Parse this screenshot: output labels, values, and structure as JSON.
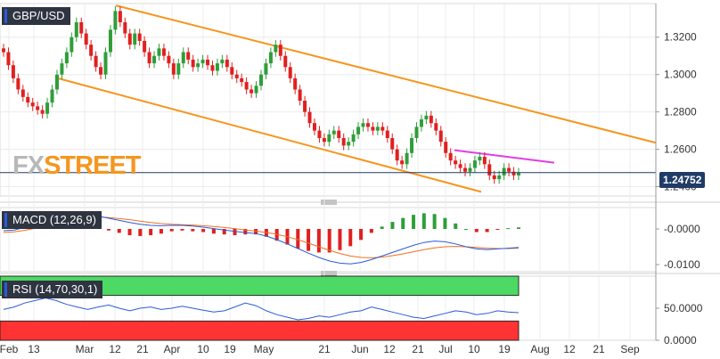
{
  "colors": {
    "up": "#2f9e3a",
    "down": "#e02020",
    "channel": "#f5961e",
    "resistance": "#e040e0",
    "last_price_line": "#1f3b66",
    "macd_line": "#2a5bd7",
    "signal_line": "#f07020",
    "rsi_line": "#2a5bd7",
    "overbought_fill": "#4cd964",
    "oversold_fill": "#ff3333",
    "logo_fx": "#b8b8b8",
    "logo_street": "#f5961e"
  },
  "logo": {
    "fx": "FX",
    "street": "STREET",
    "icon": "fxstreet-logo"
  },
  "price_panel": {
    "label": "GBP/USD",
    "last_price": "1.24752",
    "yticks": [
      "1.3200",
      "1.3000",
      "1.2800",
      "1.2600",
      "1.2400"
    ]
  },
  "macd_panel": {
    "label": "MACD (12,26,9)",
    "yticks": [
      "-0.0000",
      "-0.0100"
    ]
  },
  "rsi_panel": {
    "label": "RSI (14,70,30,1)",
    "yticks": [
      "50.0000",
      "0.0000"
    ]
  },
  "x_labels": [
    "Feb",
    "13",
    "Mar",
    "12",
    "21",
    "Apr",
    "10",
    "19",
    "May",
    "21",
    "Jun",
    "12",
    "21",
    "Jul",
    "10",
    "19",
    "Aug",
    "12",
    "21",
    "Sep"
  ],
  "chart_data": [
    {
      "type": "candlestick",
      "title": "GBP/USD",
      "ylim": [
        1.235,
        1.338
      ],
      "ohlc_approx_close": [
        1.312,
        1.305,
        1.298,
        1.292,
        1.288,
        1.285,
        1.283,
        1.281,
        1.279,
        1.285,
        1.292,
        1.3,
        1.306,
        1.312,
        1.32,
        1.328,
        1.322,
        1.316,
        1.31,
        1.304,
        1.3,
        1.312,
        1.324,
        1.334,
        1.328,
        1.322,
        1.316,
        1.322,
        1.318,
        1.312,
        1.306,
        1.31,
        1.314,
        1.31,
        1.306,
        1.3,
        1.306,
        1.312,
        1.308,
        1.304,
        1.306,
        1.308,
        1.305,
        1.302,
        1.306,
        1.308,
        1.304,
        1.3,
        1.298,
        1.296,
        1.292,
        1.29,
        1.294,
        1.3,
        1.306,
        1.312,
        1.316,
        1.31,
        1.304,
        1.298,
        1.292,
        1.286,
        1.28,
        1.274,
        1.27,
        1.266,
        1.264,
        1.268,
        1.27,
        1.266,
        1.262,
        1.264,
        1.268,
        1.272,
        1.274,
        1.272,
        1.27,
        1.272,
        1.27,
        1.266,
        1.26,
        1.254,
        1.252,
        1.258,
        1.266,
        1.272,
        1.276,
        1.278,
        1.274,
        1.27,
        1.264,
        1.258,
        1.254,
        1.252,
        1.25,
        1.248,
        1.25,
        1.254,
        1.256,
        1.252,
        1.246,
        1.244,
        1.246,
        1.25,
        1.248,
        1.246,
        1.2475
      ]
    },
    {
      "type": "line",
      "title": "MACD (12,26,9)",
      "ylim": [
        -0.012,
        0.006
      ],
      "series": [
        {
          "name": "MACD",
          "values": [
            -0.0005,
            -0.0003,
            0.0004,
            0.0012,
            0.0022,
            0.0032,
            0.004,
            0.0042,
            0.004,
            0.0036,
            0.003,
            0.0024,
            0.0018,
            0.0013,
            0.001,
            0.0009,
            0.001,
            0.001,
            0.0008,
            0.0005,
            0.0001,
            -0.0003,
            -0.0007,
            -0.001,
            -0.0013,
            -0.002,
            -0.003,
            -0.0042,
            -0.0055,
            -0.0068,
            -0.008,
            -0.009,
            -0.0096,
            -0.0098,
            -0.0094,
            -0.0086,
            -0.0076,
            -0.0066,
            -0.0056,
            -0.0046,
            -0.0038,
            -0.0034,
            -0.0036,
            -0.0042,
            -0.005,
            -0.0056,
            -0.0058,
            -0.0056,
            -0.0054,
            -0.0052
          ]
        },
        {
          "name": "Signal",
          "values": [
            -0.001,
            -0.0008,
            -0.0004,
            0.0002,
            0.0009,
            0.0017,
            0.0025,
            0.0031,
            0.0034,
            0.0034,
            0.0032,
            0.0029,
            0.0026,
            0.0022,
            0.0018,
            0.0015,
            0.0013,
            0.0012,
            0.0011,
            0.0009,
            0.0007,
            0.0004,
            0.0001,
            -0.0003,
            -0.0006,
            -0.001,
            -0.0015,
            -0.0022,
            -0.003,
            -0.004,
            -0.005,
            -0.006,
            -0.0069,
            -0.0076,
            -0.008,
            -0.0081,
            -0.0079,
            -0.0075,
            -0.007,
            -0.0064,
            -0.0058,
            -0.0053,
            -0.005,
            -0.0049,
            -0.005,
            -0.0052,
            -0.0054,
            -0.0055,
            -0.0055,
            -0.0054
          ]
        }
      ]
    },
    {
      "type": "line",
      "title": "RSI (14,70,30,1)",
      "ylim": [
        0,
        100
      ],
      "series": [
        {
          "name": "RSI",
          "values": [
            48,
            52,
            58,
            62,
            66,
            62,
            56,
            52,
            48,
            52,
            55,
            50,
            46,
            50,
            52,
            48,
            50,
            53,
            50,
            47,
            44,
            46,
            52,
            58,
            54,
            46,
            40,
            36,
            32,
            34,
            38,
            36,
            40,
            44,
            46,
            52,
            48,
            44,
            40,
            36,
            34,
            38,
            42,
            46,
            44,
            40,
            42,
            46,
            44,
            43
          ]
        }
      ]
    }
  ]
}
